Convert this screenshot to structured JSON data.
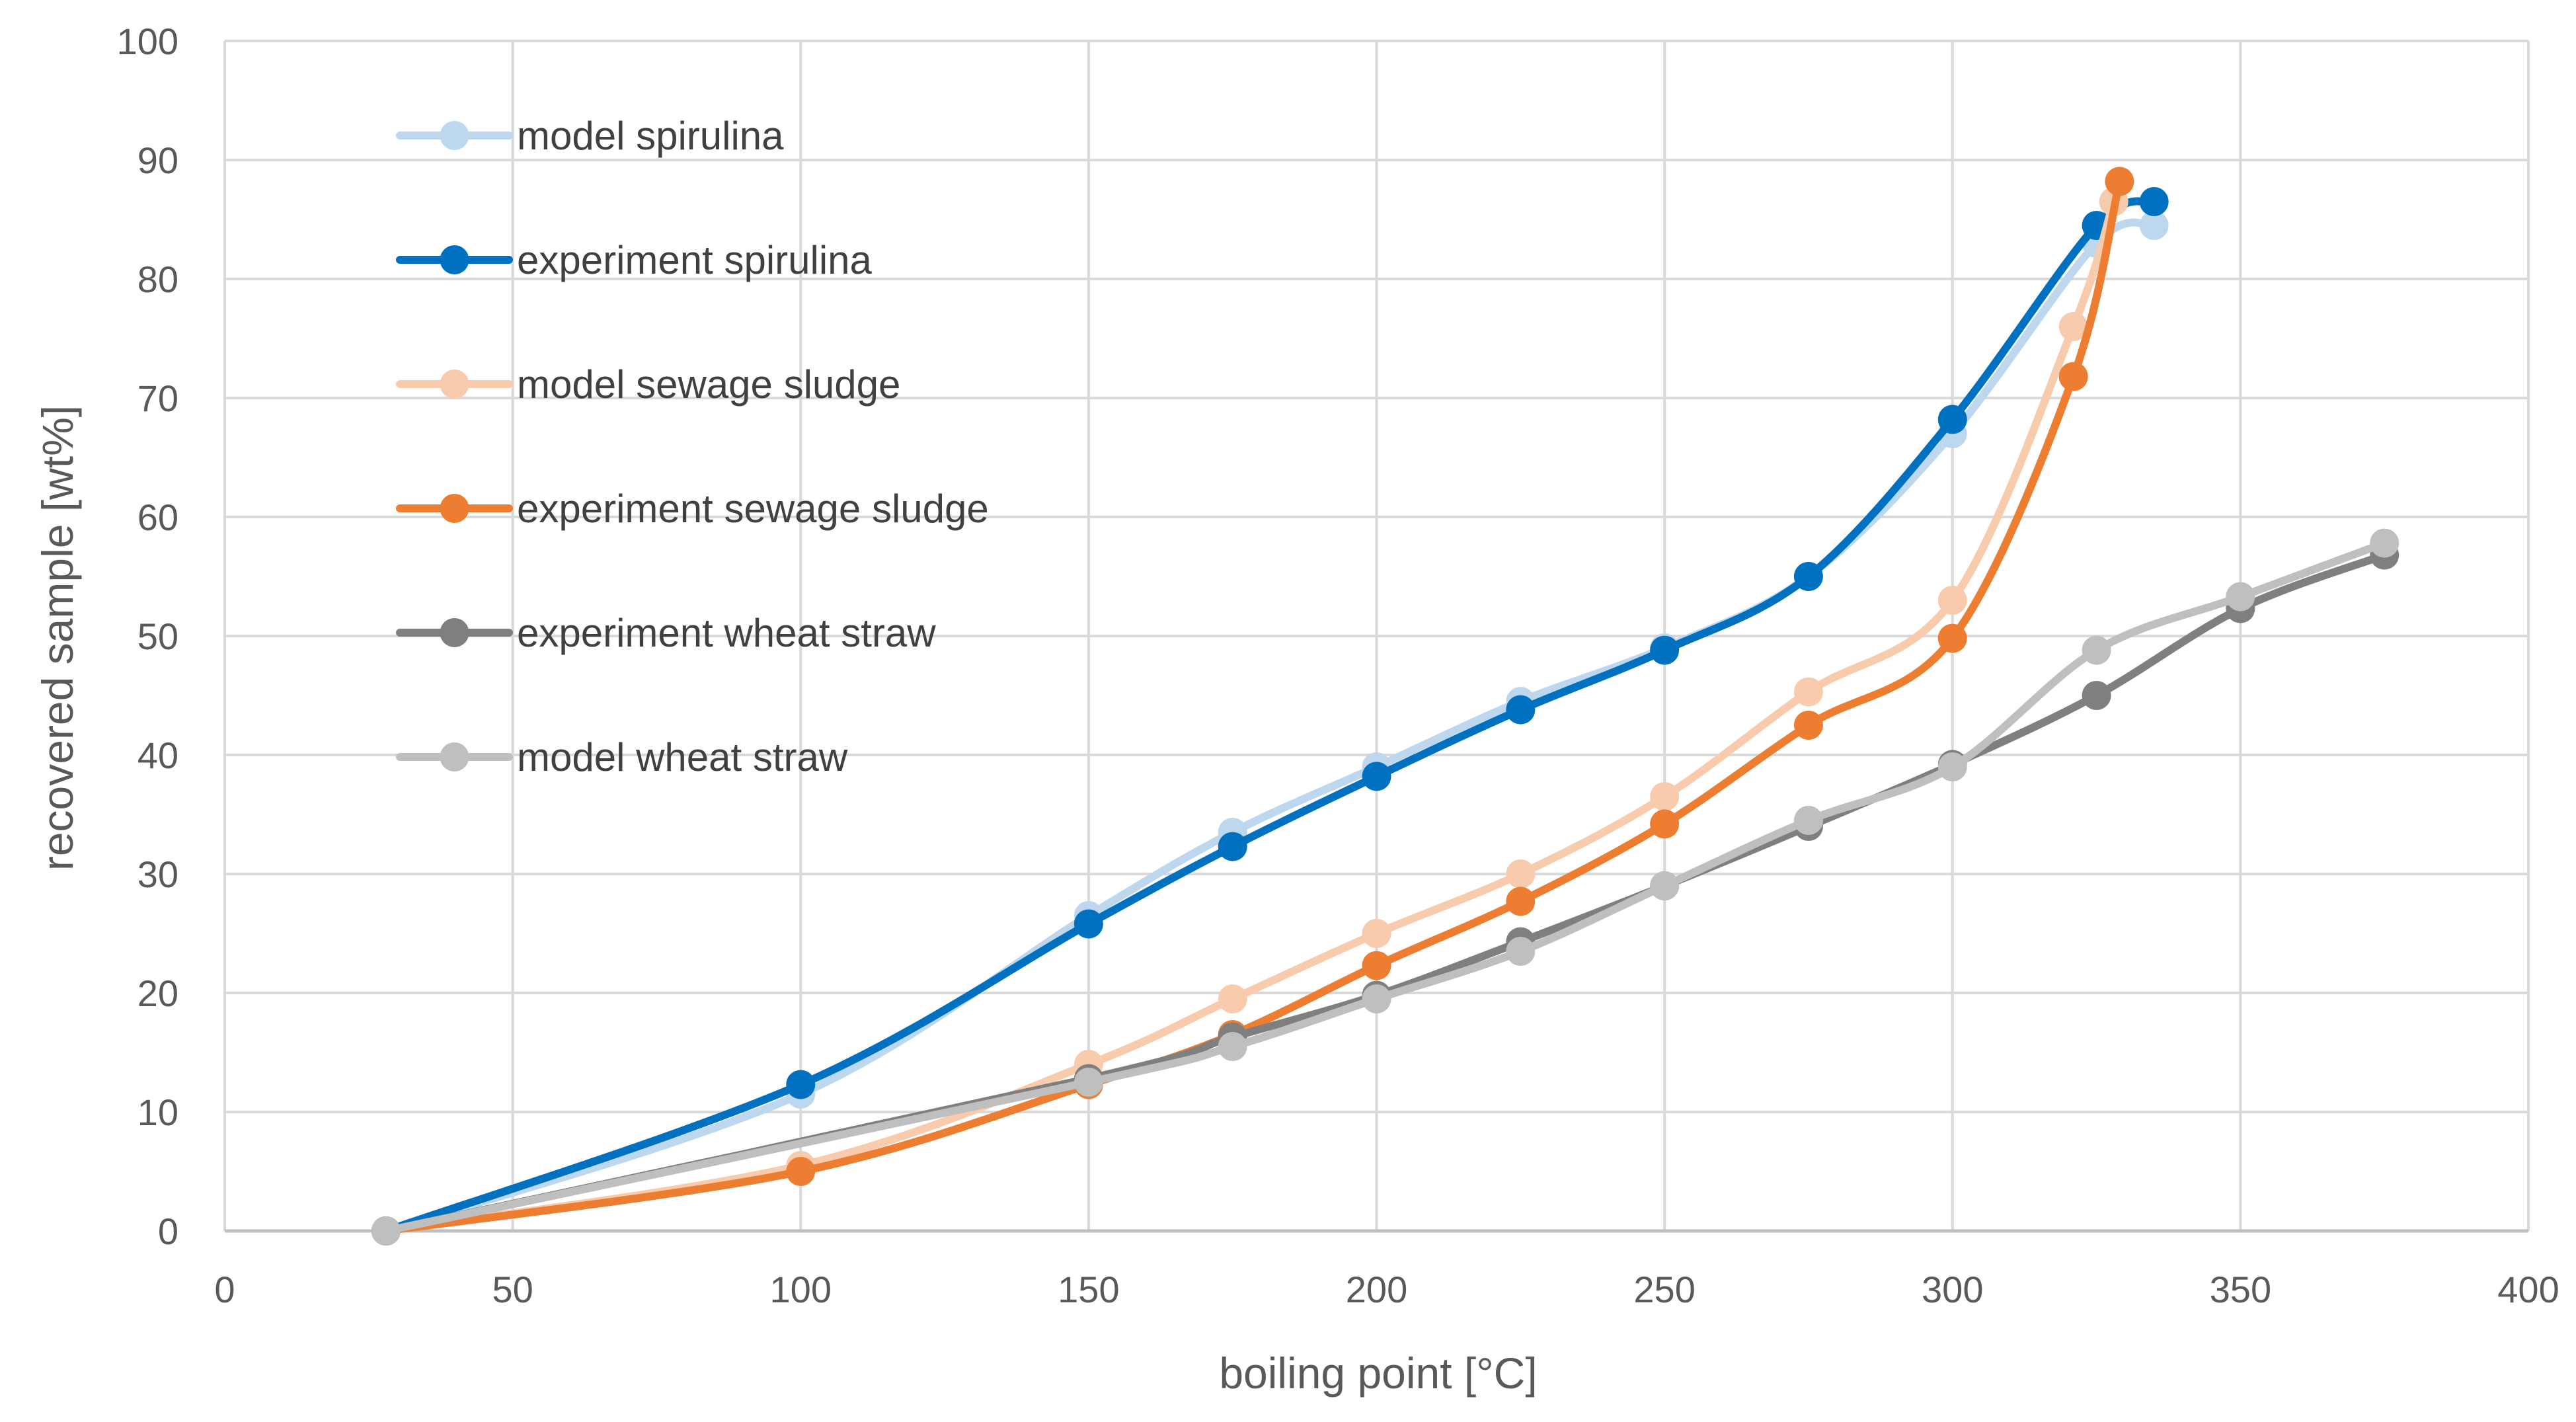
{
  "chart_data": {
    "type": "line",
    "title": "",
    "xlabel": "boiling point [°C]",
    "ylabel": "recovered sample [wt%]",
    "xlim": [
      0,
      400
    ],
    "ylim": [
      0,
      100
    ],
    "xticks": [
      0,
      50,
      100,
      150,
      200,
      250,
      300,
      350,
      400
    ],
    "yticks": [
      0,
      10,
      20,
      30,
      40,
      50,
      60,
      70,
      80,
      90,
      100
    ],
    "grid": true,
    "legend_position": "top-left inside",
    "series": [
      {
        "name": "model spirulina",
        "color": "#bdd7ee",
        "points": [
          [
            28,
            0
          ],
          [
            100,
            11.5
          ],
          [
            150,
            26.5
          ],
          [
            175,
            33.5
          ],
          [
            200,
            39
          ],
          [
            225,
            44.5
          ],
          [
            250,
            49
          ],
          [
            275,
            55
          ],
          [
            300,
            67
          ],
          [
            325,
            83
          ],
          [
            335,
            84.5
          ]
        ]
      },
      {
        "name": "experiment spirulina",
        "color": "#0070c0",
        "points": [
          [
            28,
            0
          ],
          [
            100,
            12.3
          ],
          [
            150,
            25.8
          ],
          [
            175,
            32.3
          ],
          [
            200,
            38.2
          ],
          [
            225,
            43.8
          ],
          [
            250,
            48.8
          ],
          [
            275,
            55
          ],
          [
            300,
            68.2
          ],
          [
            325,
            84.5
          ],
          [
            335,
            86.5
          ]
        ]
      },
      {
        "name": "model sewage sludge",
        "color": "#f8cbad",
        "points": [
          [
            28,
            0
          ],
          [
            100,
            5.5
          ],
          [
            150,
            14
          ],
          [
            175,
            19.5
          ],
          [
            200,
            25
          ],
          [
            225,
            30
          ],
          [
            250,
            36.5
          ],
          [
            275,
            45.3
          ],
          [
            300,
            53
          ],
          [
            321,
            76
          ],
          [
            328,
            86.5
          ]
        ]
      },
      {
        "name": "experiment sewage sludge",
        "color": "#ed7d31",
        "points": [
          [
            28,
            0
          ],
          [
            100,
            5
          ],
          [
            150,
            12.3
          ],
          [
            175,
            16.5
          ],
          [
            200,
            22.3
          ],
          [
            225,
            27.7
          ],
          [
            250,
            34.2
          ],
          [
            275,
            42.5
          ],
          [
            300,
            49.8
          ],
          [
            321,
            71.8
          ],
          [
            329,
            88.2
          ]
        ]
      },
      {
        "name": "experiment wheat straw",
        "color": "#7f7f7f",
        "points": [
          [
            28,
            0
          ],
          [
            150,
            12.8
          ],
          [
            175,
            16.3
          ],
          [
            200,
            19.8
          ],
          [
            225,
            24.3
          ],
          [
            250,
            29
          ],
          [
            275,
            34
          ],
          [
            300,
            39.2
          ],
          [
            325,
            45
          ],
          [
            350,
            52.3
          ],
          [
            375,
            56.8
          ]
        ]
      },
      {
        "name": "model wheat straw",
        "color": "#bfbfbf",
        "points": [
          [
            28,
            0
          ],
          [
            150,
            12.5
          ],
          [
            175,
            15.5
          ],
          [
            200,
            19.5
          ],
          [
            225,
            23.5
          ],
          [
            250,
            29
          ],
          [
            275,
            34.5
          ],
          [
            300,
            39
          ],
          [
            325,
            48.8
          ],
          [
            350,
            53.3
          ],
          [
            375,
            57.8
          ]
        ]
      }
    ]
  }
}
